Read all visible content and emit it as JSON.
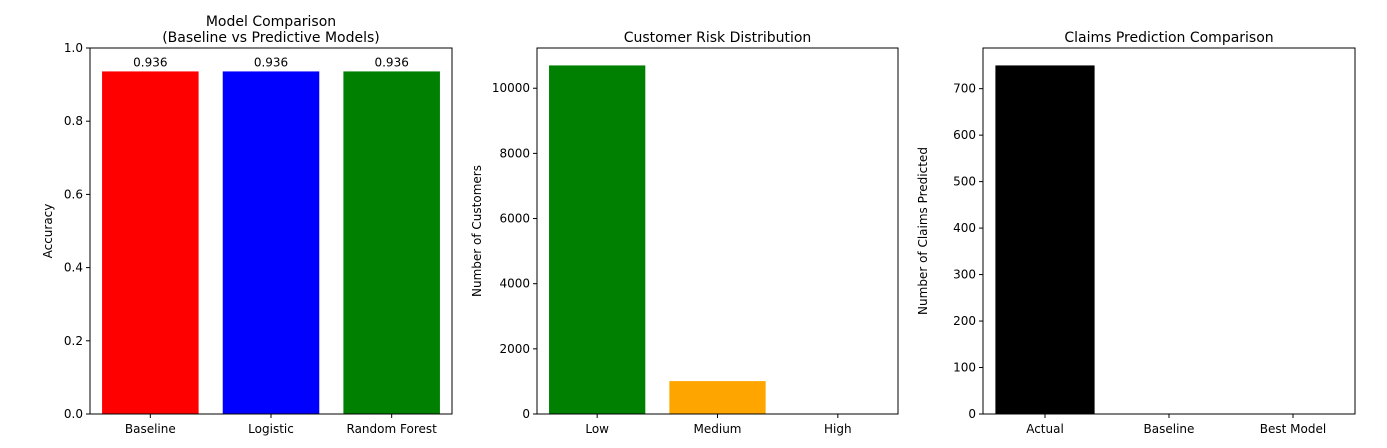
{
  "chart_data": [
    {
      "type": "bar",
      "title_lines": [
        "Model Comparison",
        "(Baseline vs Predictive Models)"
      ],
      "xlabel": "",
      "ylabel": "Accuracy",
      "categories": [
        "Baseline",
        "Logistic",
        "Random Forest"
      ],
      "values": [
        0.936,
        0.936,
        0.936
      ],
      "data_labels": [
        "0.936",
        "0.936",
        "0.936"
      ],
      "colors": [
        "#ff0000",
        "#0000ff",
        "#008000"
      ],
      "ylim": [
        0,
        1.0
      ],
      "yticks": [
        0.0,
        0.2,
        0.4,
        0.6,
        0.8,
        1.0
      ],
      "ytick_labels": [
        "0.0",
        "0.2",
        "0.4",
        "0.6",
        "0.8",
        "1.0"
      ],
      "grid": false,
      "legend": "none"
    },
    {
      "type": "bar",
      "title_lines": [
        "Customer Risk Distribution"
      ],
      "xlabel": "",
      "ylabel": "Number of Customers",
      "categories": [
        "Low",
        "Medium",
        "High"
      ],
      "values": [
        10700,
        1010,
        0
      ],
      "data_labels": [],
      "colors": [
        "#008000",
        "#ffa500",
        "#ff0000"
      ],
      "ylim": [
        0,
        11235
      ],
      "yticks": [
        0,
        2000,
        4000,
        6000,
        8000,
        10000
      ],
      "ytick_labels": [
        "0",
        "2000",
        "4000",
        "6000",
        "8000",
        "10000"
      ],
      "grid": false,
      "legend": "none"
    },
    {
      "type": "bar",
      "title_lines": [
        "Claims Prediction Comparison"
      ],
      "xlabel": "",
      "ylabel": "Number of Claims Predicted",
      "categories": [
        "Actual",
        "Baseline",
        "Best Model"
      ],
      "values": [
        750,
        0,
        0
      ],
      "data_labels": [],
      "colors": [
        "#000000",
        "#808080",
        "#0000ff"
      ],
      "ylim": [
        0,
        787.5
      ],
      "yticks": [
        0,
        100,
        200,
        300,
        400,
        500,
        600,
        700
      ],
      "ytick_labels": [
        "0",
        "100",
        "200",
        "300",
        "400",
        "500",
        "600",
        "700"
      ],
      "grid": false,
      "legend": "none"
    }
  ]
}
